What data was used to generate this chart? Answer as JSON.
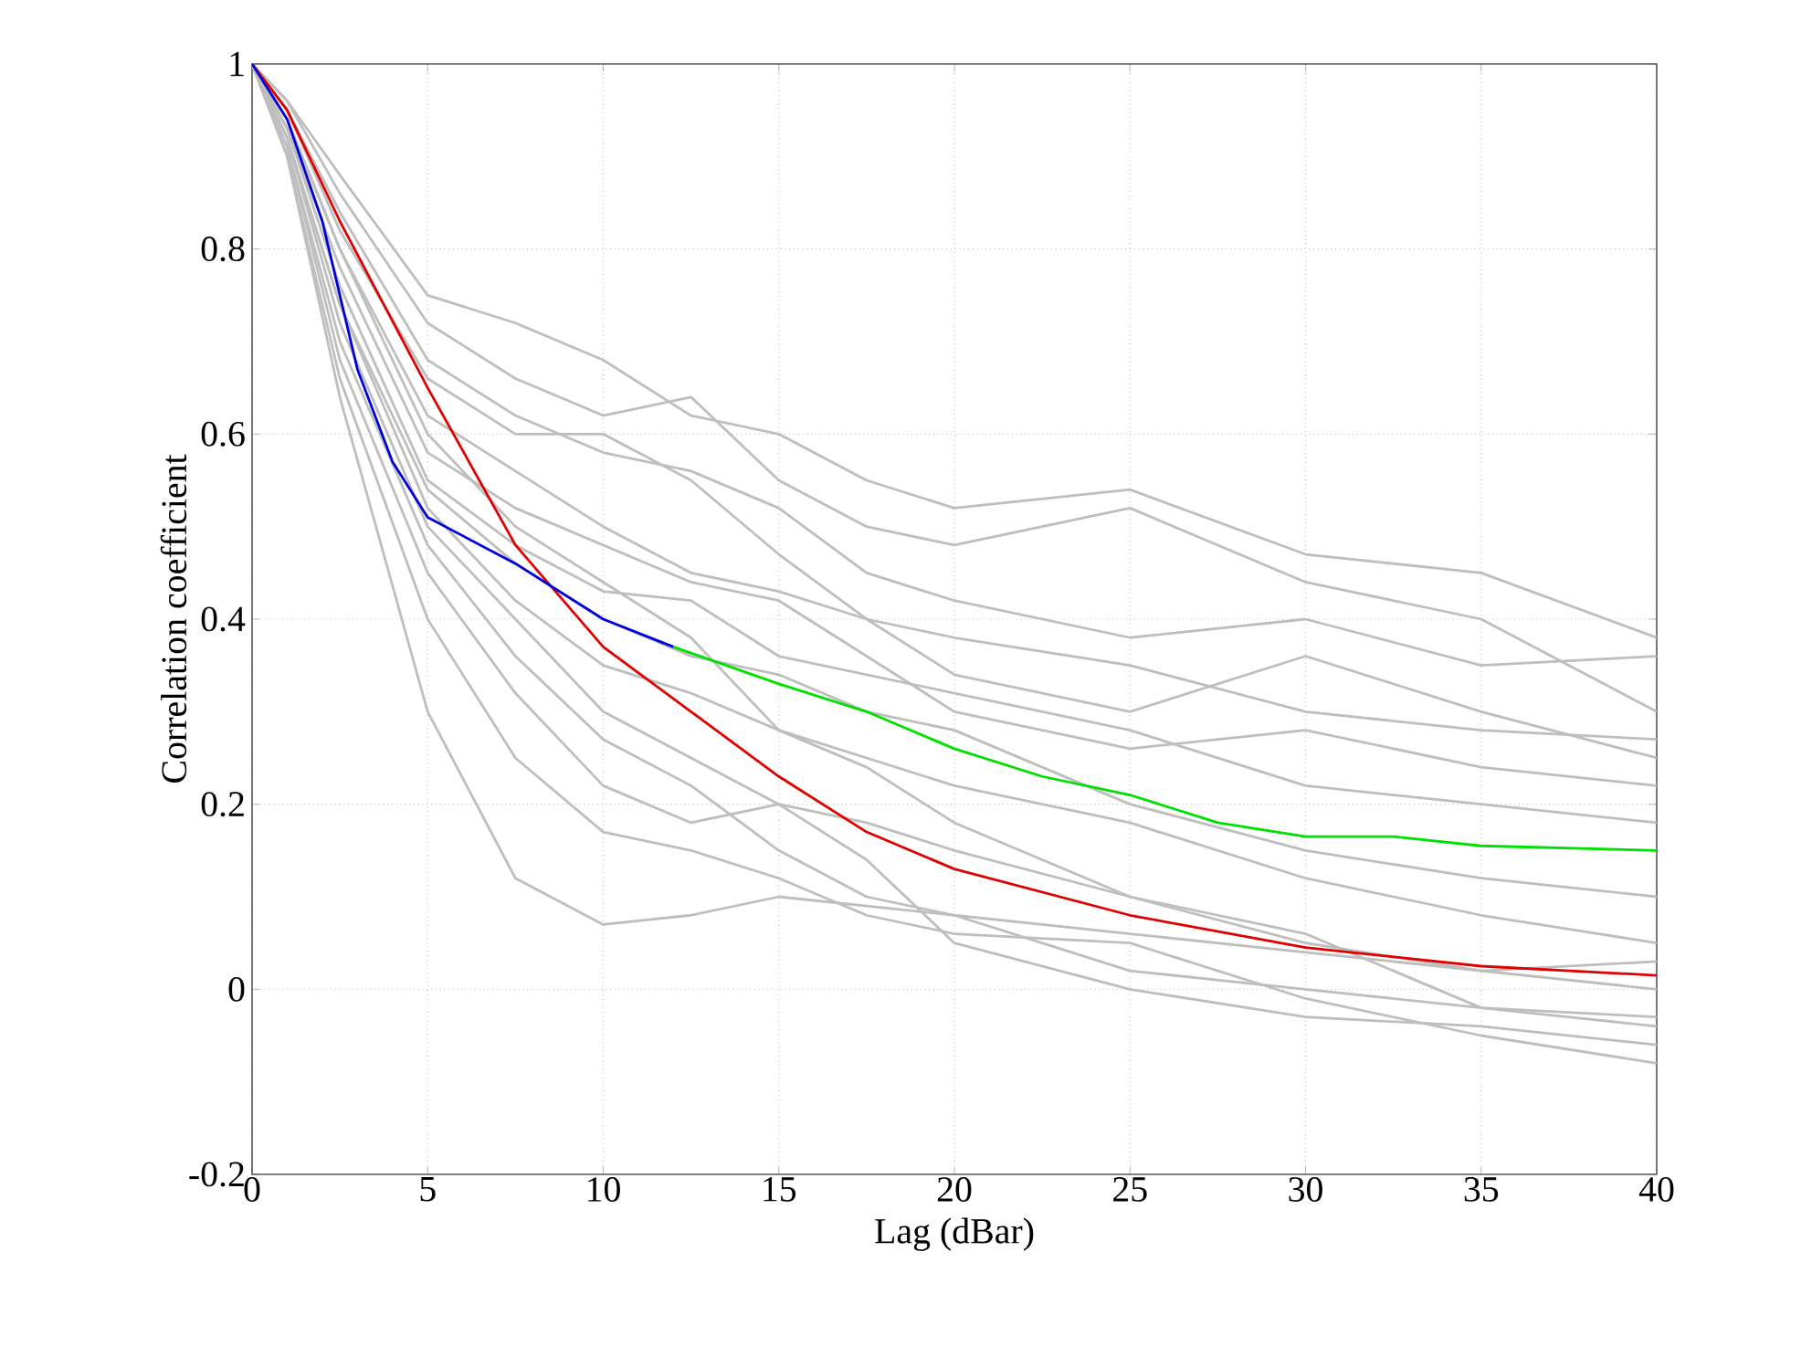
{
  "chart_data": {
    "type": "line",
    "xlabel": "Lag (dBar)",
    "ylabel": "Correlation coefficient",
    "x": [
      0,
      1,
      2.5,
      5,
      7.5,
      10,
      12.5,
      15,
      17.5,
      20,
      25,
      30,
      35,
      40
    ],
    "xlim": [
      0,
      40
    ],
    "xticks": [
      0,
      5,
      10,
      15,
      20,
      25,
      30,
      35,
      40
    ],
    "ylim": [
      -0.2,
      1
    ],
    "yticks": [
      -0.2,
      0,
      0.2,
      0.4,
      0.6,
      0.8,
      1
    ],
    "grid": true,
    "line_style": "solid",
    "marker": "none",
    "series": [
      {
        "color": "#bebebe",
        "values": [
          1,
          0.96,
          0.88,
          0.75,
          0.72,
          0.68,
          0.62,
          0.6,
          0.55,
          0.52,
          0.54,
          0.47,
          0.45,
          0.38
        ]
      },
      {
        "color": "#bebebe",
        "values": [
          1,
          0.96,
          0.86,
          0.72,
          0.66,
          0.62,
          0.64,
          0.55,
          0.5,
          0.48,
          0.52,
          0.44,
          0.4,
          0.3
        ]
      },
      {
        "color": "#bebebe",
        "values": [
          1,
          0.95,
          0.84,
          0.68,
          0.62,
          0.58,
          0.56,
          0.52,
          0.45,
          0.42,
          0.38,
          0.4,
          0.35,
          0.36
        ]
      },
      {
        "color": "#bebebe",
        "values": [
          1,
          0.95,
          0.82,
          0.66,
          0.6,
          0.6,
          0.55,
          0.47,
          0.4,
          0.38,
          0.35,
          0.3,
          0.28,
          0.27
        ]
      },
      {
        "color": "#bebebe",
        "values": [
          1,
          0.94,
          0.8,
          0.62,
          0.56,
          0.5,
          0.45,
          0.43,
          0.4,
          0.34,
          0.3,
          0.36,
          0.3,
          0.25
        ]
      },
      {
        "color": "#bebebe",
        "values": [
          1,
          0.93,
          0.78,
          0.58,
          0.52,
          0.48,
          0.44,
          0.42,
          0.36,
          0.3,
          0.26,
          0.28,
          0.24,
          0.22
        ]
      },
      {
        "color": "#bebebe",
        "values": [
          1,
          0.93,
          0.76,
          0.55,
          0.48,
          0.43,
          0.42,
          0.36,
          0.34,
          0.32,
          0.28,
          0.22,
          0.2,
          0.18
        ]
      },
      {
        "color": "#bebebe",
        "values": [
          1,
          0.92,
          0.74,
          0.52,
          0.42,
          0.35,
          0.32,
          0.28,
          0.25,
          0.22,
          0.18,
          0.12,
          0.08,
          0.05
        ]
      },
      {
        "color": "#bebebe",
        "values": [
          1,
          0.92,
          0.72,
          0.5,
          0.4,
          0.3,
          0.25,
          0.2,
          0.18,
          0.15,
          0.1,
          0.05,
          0.02,
          0.03
        ]
      },
      {
        "color": "#bebebe",
        "values": [
          1,
          0.91,
          0.7,
          0.48,
          0.36,
          0.27,
          0.22,
          0.15,
          0.1,
          0.08,
          0.02,
          0.0,
          -0.02,
          -0.03
        ]
      },
      {
        "color": "#bebebe",
        "values": [
          1,
          0.91,
          0.68,
          0.45,
          0.32,
          0.22,
          0.18,
          0.2,
          0.14,
          0.05,
          0.0,
          -0.03,
          -0.04,
          -0.06
        ]
      },
      {
        "color": "#bebebe",
        "values": [
          1,
          0.9,
          0.66,
          0.4,
          0.25,
          0.17,
          0.15,
          0.12,
          0.08,
          0.06,
          0.05,
          -0.01,
          -0.05,
          -0.08
        ]
      },
      {
        "color": "#bebebe",
        "values": [
          1,
          0.9,
          0.64,
          0.3,
          0.12,
          0.07,
          0.08,
          0.1,
          0.09,
          0.08,
          0.06,
          0.04,
          0.02,
          0.0
        ]
      },
      {
        "color": "#bebebe",
        "values": [
          1,
          0.92,
          0.74,
          0.54,
          0.46,
          0.4,
          0.36,
          0.34,
          0.3,
          0.28,
          0.2,
          0.15,
          0.12,
          0.1
        ]
      },
      {
        "color": "#bebebe",
        "values": [
          1,
          0.94,
          0.8,
          0.6,
          0.5,
          0.44,
          0.38,
          0.28,
          0.24,
          0.18,
          0.1,
          0.06,
          -0.02,
          -0.04
        ]
      },
      {
        "color": "#e00000",
        "values": [
          1,
          0.95,
          0.83,
          0.65,
          0.48,
          0.37,
          0.3,
          0.23,
          0.17,
          0.13,
          0.08,
          0.045,
          0.025,
          0.015
        ]
      },
      {
        "color": "#0000dd",
        "x": [
          0,
          1,
          2,
          3,
          4,
          5,
          6,
          7.5,
          10,
          12
        ],
        "values": [
          1,
          0.94,
          0.83,
          0.67,
          0.57,
          0.51,
          0.49,
          0.46,
          0.4,
          0.37
        ]
      },
      {
        "color": "#00e000",
        "x": [
          12,
          15,
          17.5,
          20,
          22.5,
          25,
          27.5,
          30,
          32.5,
          35,
          40
        ],
        "values": [
          0.37,
          0.33,
          0.3,
          0.26,
          0.23,
          0.21,
          0.18,
          0.165,
          0.165,
          0.155,
          0.15
        ]
      }
    ]
  }
}
